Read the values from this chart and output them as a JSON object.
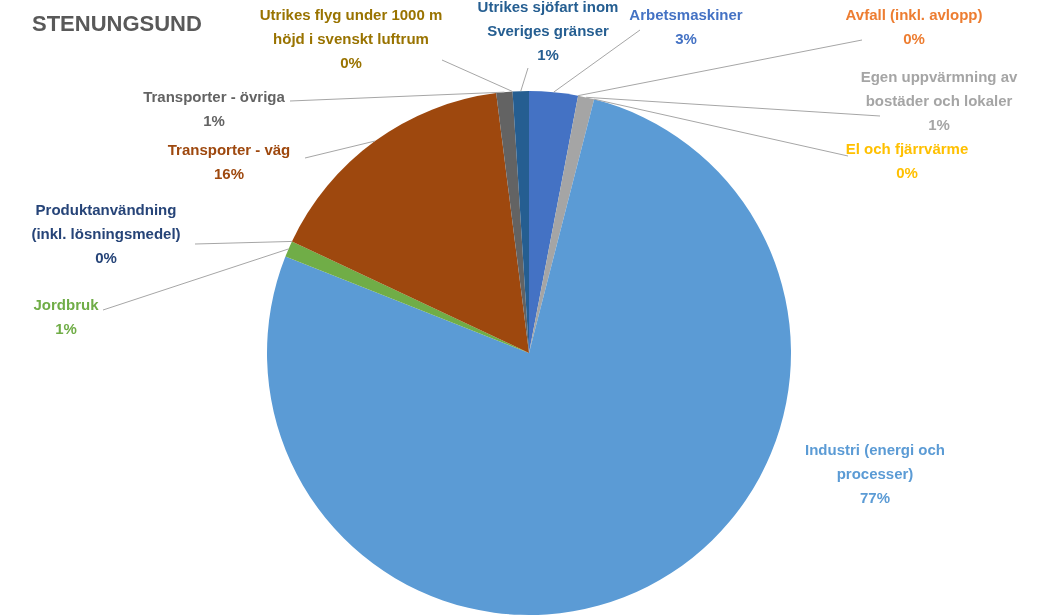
{
  "chart_data": {
    "type": "pie",
    "title": "STENUNGSUND",
    "categories": [
      "Arbetsmaskiner",
      "Avfall (inkl. avlopp)",
      "Egen uppvärmning av bostäder och lokaler",
      "El och fjärrvärme",
      "Industri (energi och processer)",
      "Jordbruk",
      "Produktanvändning (inkl. lösningsmedel)",
      "Transporter - väg",
      "Transporter - övriga",
      "Utrikes flyg under 1000 m höjd i svenskt luftrum",
      "Utrikes sjöfart inom Sveriges gränser"
    ],
    "values": [
      3,
      0,
      1,
      0,
      77,
      1,
      0,
      16,
      1,
      0,
      1
    ],
    "colors": [
      "#4472c4",
      "#ed7d31",
      "#a5a5a5",
      "#ffc000",
      "#5b9bd5",
      "#70ad47",
      "#264478",
      "#9e480e",
      "#636363",
      "#997300",
      "#255e91"
    ],
    "value_labels": [
      "3%",
      "0%",
      "1%",
      "0%",
      "77%",
      "1%",
      "0%",
      "16%",
      "1%",
      "0%",
      "1%"
    ],
    "legend": false
  }
}
